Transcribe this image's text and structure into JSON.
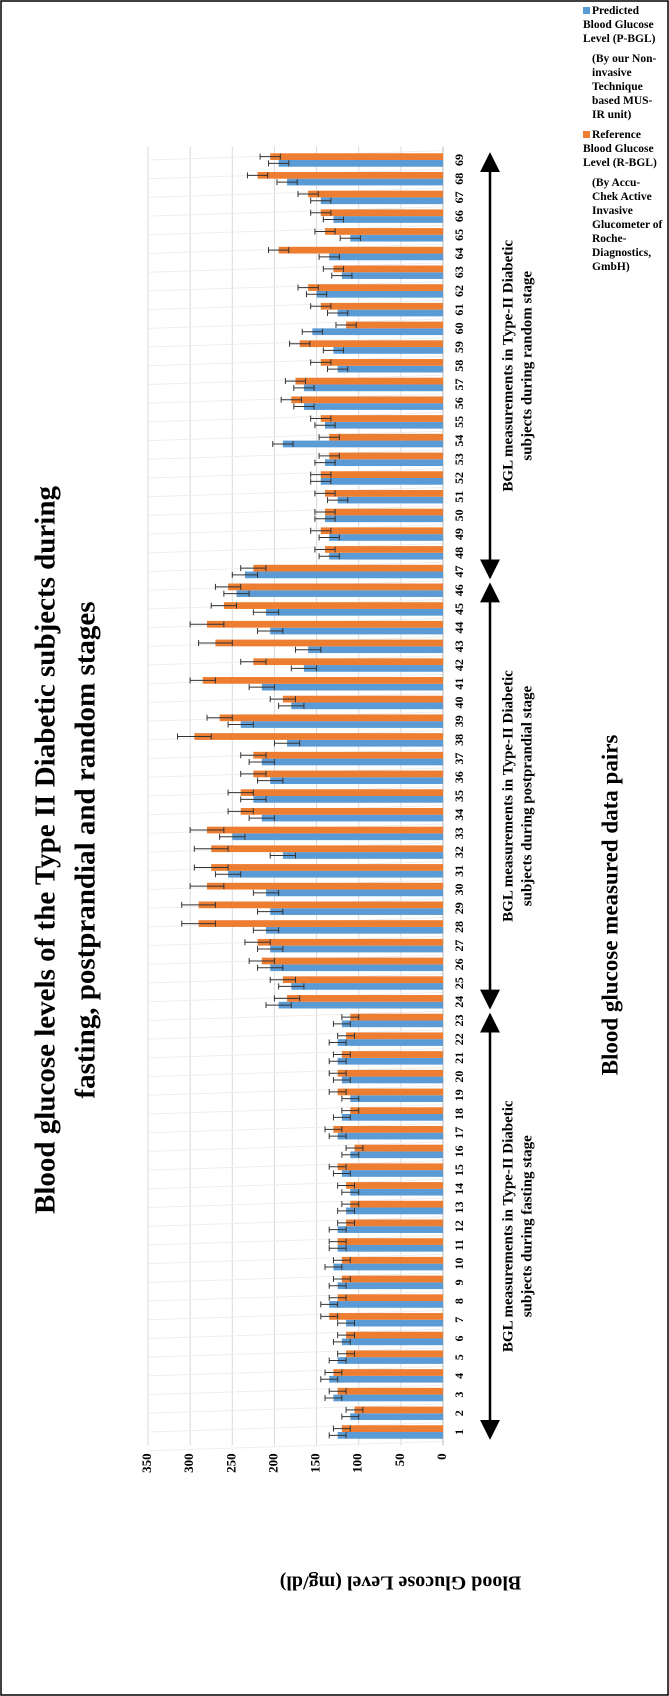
{
  "chart_data": {
    "type": "bar",
    "title": [
      "Blood glucose levels of the Type II Diabetic subjects during",
      "fasting, postprandial and random stages"
    ],
    "xlabel": "Blood glucose measured data pairs",
    "ylabel": "Blood Glucose Level (mg/dl)",
    "categories": [
      "1",
      "2",
      "3",
      "4",
      "5",
      "6",
      "7",
      "8",
      "9",
      "10",
      "11",
      "12",
      "13",
      "14",
      "15",
      "16",
      "17",
      "18",
      "19",
      "20",
      "21",
      "22",
      "23",
      "24",
      "25",
      "26",
      "27",
      "28",
      "29",
      "30",
      "31",
      "32",
      "33",
      "34",
      "35",
      "36",
      "37",
      "38",
      "39",
      "40",
      "41",
      "42",
      "43",
      "44",
      "45",
      "46",
      "47",
      "48",
      "49",
      "50",
      "51",
      "52",
      "53",
      "54",
      "55",
      "56",
      "57",
      "58",
      "59",
      "60",
      "61",
      "62",
      "63",
      "64",
      "65",
      "66",
      "67",
      "68",
      "69"
    ],
    "series": [
      {
        "name": "Predicted Blood Glucose Level (P-BGL)",
        "note": "(By our Non-invasive Technique based MUS-IR unit)",
        "color": "#5b9bd5",
        "values": [
          125,
          110,
          130,
          135,
          125,
          120,
          115,
          135,
          125,
          130,
          125,
          125,
          115,
          110,
          120,
          110,
          125,
          120,
          110,
          120,
          125,
          125,
          120,
          195,
          180,
          205,
          205,
          210,
          205,
          210,
          255,
          190,
          250,
          215,
          225,
          205,
          215,
          185,
          240,
          180,
          215,
          165,
          160,
          205,
          210,
          245,
          235,
          135,
          135,
          140,
          125,
          145,
          140,
          190,
          140,
          165,
          165,
          125,
          130,
          155,
          125,
          150,
          120,
          135,
          110,
          130,
          145,
          185,
          195
        ],
        "errors": [
          10,
          10,
          10,
          10,
          10,
          10,
          10,
          10,
          10,
          10,
          10,
          10,
          10,
          10,
          10,
          10,
          10,
          10,
          10,
          10,
          10,
          10,
          10,
          15,
          15,
          15,
          15,
          15,
          15,
          15,
          15,
          15,
          15,
          15,
          15,
          15,
          15,
          15,
          15,
          15,
          15,
          15,
          15,
          15,
          15,
          15,
          15,
          12,
          12,
          12,
          12,
          12,
          12,
          12,
          12,
          12,
          12,
          12,
          12,
          12,
          12,
          12,
          12,
          12,
          12,
          12,
          12,
          12,
          12
        ]
      },
      {
        "name": "Reference Blood Glucose Level (R-BGL)",
        "note": "(By Accu-Chek Active Invasive Glucometer of Roche-Diagnostics, GmbH)",
        "color": "#ed7d31",
        "values": [
          120,
          105,
          125,
          130,
          115,
          115,
          135,
          125,
          120,
          120,
          125,
          115,
          110,
          115,
          125,
          105,
          130,
          110,
          125,
          125,
          120,
          115,
          110,
          185,
          190,
          215,
          220,
          290,
          290,
          280,
          275,
          275,
          280,
          240,
          240,
          225,
          225,
          295,
          265,
          190,
          285,
          225,
          270,
          280,
          260,
          255,
          225,
          140,
          145,
          140,
          140,
          145,
          135,
          135,
          145,
          180,
          175,
          145,
          170,
          115,
          145,
          160,
          130,
          195,
          140,
          145,
          160,
          220,
          205
        ],
        "errors": [
          10,
          10,
          10,
          10,
          10,
          10,
          10,
          10,
          10,
          10,
          10,
          10,
          10,
          10,
          10,
          10,
          10,
          10,
          10,
          10,
          10,
          10,
          10,
          15,
          15,
          15,
          15,
          20,
          20,
          20,
          20,
          20,
          20,
          15,
          15,
          15,
          15,
          20,
          15,
          15,
          15,
          15,
          20,
          20,
          15,
          15,
          15,
          12,
          12,
          12,
          12,
          12,
          12,
          12,
          12,
          12,
          12,
          12,
          12,
          12,
          12,
          12,
          12,
          12,
          12,
          12,
          12,
          12,
          12
        ]
      }
    ],
    "groups": [
      {
        "label": [
          "BGL measurements in Type-II Diabetic",
          "subjects during fasting stage"
        ]
      },
      {
        "label": [
          "BGL measurements in Type-II Diabetic",
          "subjects during postprandial stage"
        ]
      },
      {
        "label": [
          "BGL measurements in Type-II Diabetic",
          "subjects during random stage"
        ]
      }
    ],
    "ylim": [
      0,
      350
    ],
    "yticks": [
      0,
      50,
      100,
      150,
      200,
      250,
      300,
      350
    ],
    "grid": true
  }
}
